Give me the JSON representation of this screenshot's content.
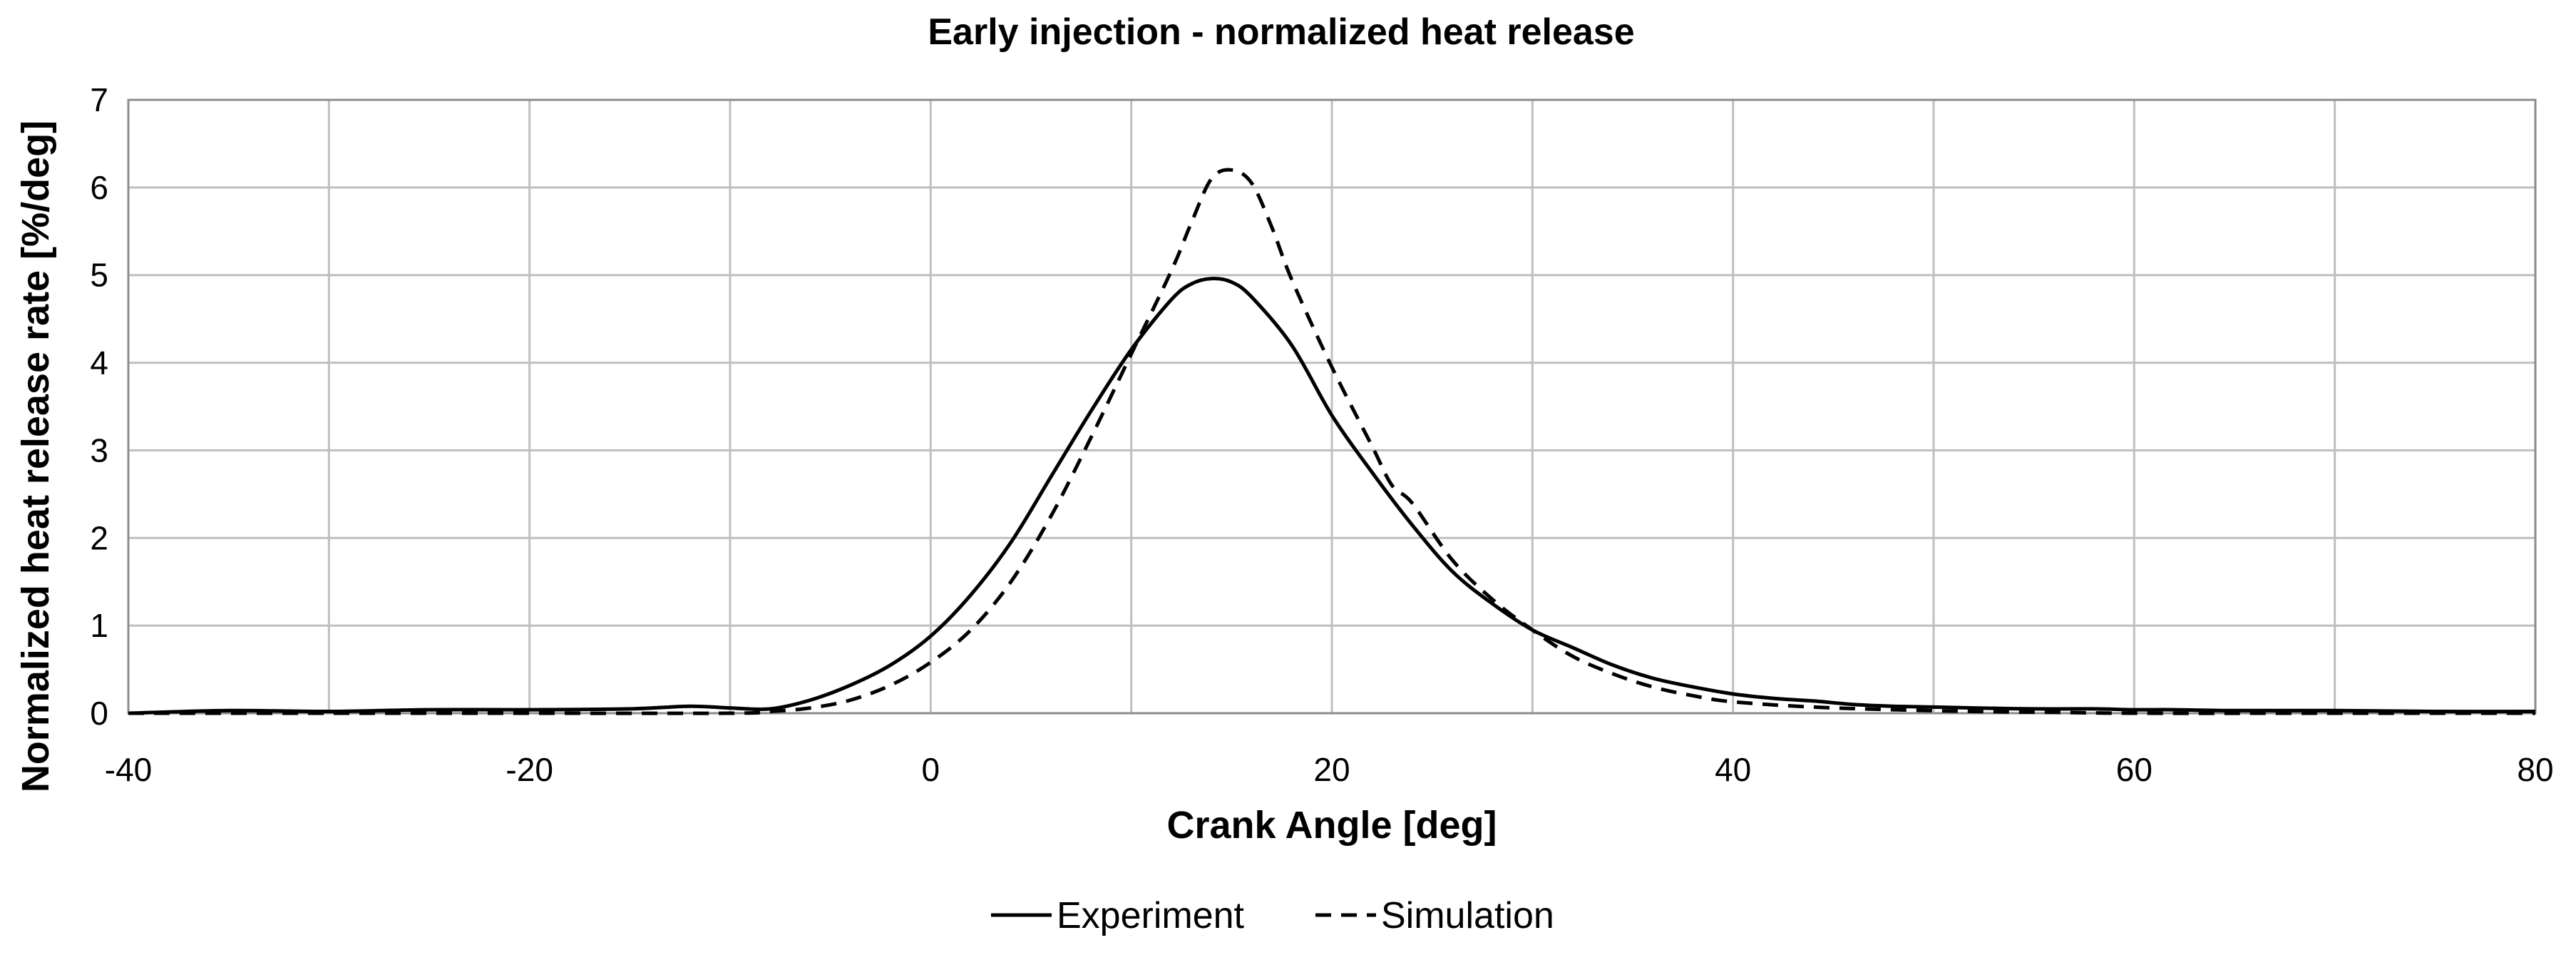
{
  "chart_data": {
    "type": "line",
    "title": "Early injection - normalized heat release",
    "xlabel": "Crank Angle [deg]",
    "ylabel": "Normalized heat release rate [%/deg]",
    "xlim": [
      -40,
      80
    ],
    "ylim": [
      0,
      7
    ],
    "xticks": [
      -40,
      -20,
      0,
      20,
      40,
      60,
      80
    ],
    "yticks": [
      0,
      1,
      2,
      3,
      4,
      5,
      6,
      7
    ],
    "grid": true,
    "legend_position": "bottom",
    "series": [
      {
        "name": "Experiment",
        "style": "solid",
        "color": "#000000",
        "x": [
          -40,
          -35,
          -30,
          -25,
          -20,
          -15,
          -12,
          -10,
          -8,
          -6,
          -4,
          -2,
          0,
          2,
          4,
          6,
          8,
          10,
          12,
          13,
          14,
          15,
          16,
          18,
          20,
          22,
          24,
          26,
          28,
          30,
          32,
          34,
          36,
          38,
          40,
          42,
          44,
          46,
          48,
          50,
          52,
          55,
          58,
          60,
          62,
          65,
          70,
          75,
          80
        ],
        "y": [
          0.0,
          0.03,
          0.02,
          0.04,
          0.04,
          0.05,
          0.08,
          0.06,
          0.05,
          0.15,
          0.32,
          0.55,
          0.88,
          1.35,
          1.95,
          2.7,
          3.45,
          4.15,
          4.72,
          4.9,
          4.96,
          4.92,
          4.75,
          4.2,
          3.4,
          2.75,
          2.15,
          1.62,
          1.25,
          0.95,
          0.75,
          0.55,
          0.4,
          0.3,
          0.22,
          0.17,
          0.14,
          0.1,
          0.08,
          0.07,
          0.06,
          0.05,
          0.05,
          0.04,
          0.04,
          0.03,
          0.03,
          0.02,
          0.02
        ]
      },
      {
        "name": "Simulation",
        "style": "dashed",
        "color": "#000000",
        "x": [
          -40,
          -30,
          -20,
          -10,
          -8,
          -6,
          -4,
          -2,
          0,
          2,
          4,
          6,
          8,
          10,
          12,
          13,
          14,
          15,
          16,
          17,
          18,
          20,
          22,
          23,
          24,
          26,
          28,
          30,
          32,
          34,
          36,
          38,
          40,
          44,
          48,
          52,
          56,
          60,
          70,
          80
        ],
        "y": [
          0.0,
          0.0,
          0.0,
          0.0,
          0.02,
          0.06,
          0.15,
          0.32,
          0.58,
          0.95,
          1.5,
          2.25,
          3.15,
          4.1,
          5.05,
          5.6,
          6.1,
          6.2,
          6.05,
          5.55,
          4.95,
          3.95,
          3.05,
          2.6,
          2.4,
          1.75,
          1.3,
          0.95,
          0.65,
          0.45,
          0.3,
          0.2,
          0.13,
          0.07,
          0.04,
          0.02,
          0.01,
          0.0,
          0.0,
          0.0
        ]
      }
    ]
  }
}
